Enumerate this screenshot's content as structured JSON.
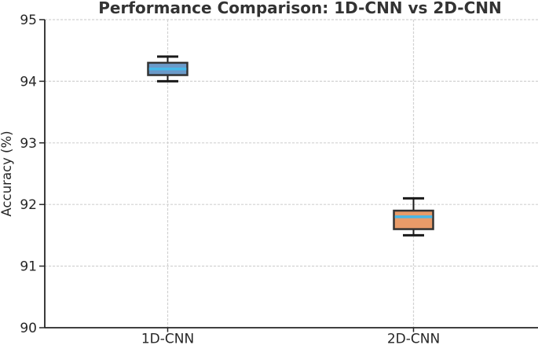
{
  "chart_data": {
    "type": "boxplot",
    "title": "Performance Comparison: 1D-CNN vs 2D-CNN",
    "xlabel": "",
    "ylabel": "Accuracy (%)",
    "categories": [
      "1D-CNN",
      "2D-CNN"
    ],
    "ylim": [
      90,
      95
    ],
    "yticks": [
      90,
      91,
      92,
      93,
      94,
      95
    ],
    "grid": "dashed light-gray horizontal lines at each y tick and vertical line at each category; top and right spines hidden",
    "legend": "none",
    "series": [
      {
        "name": "1D-CNN",
        "whisker_low": 94.0,
        "q1": 94.1,
        "median": 94.2,
        "q3": 94.3,
        "whisker_high": 94.4,
        "box_fill": "#6b9ac9"
      },
      {
        "name": "2D-CNN",
        "whisker_low": 91.5,
        "q1": 91.6,
        "median": 91.8,
        "q3": 91.9,
        "whisker_high": 92.1,
        "box_fill": "#e89b69"
      }
    ],
    "colors": {
      "median_line": "#45b8e9",
      "box_edge": "#333333",
      "whisker": "#1a1a1a",
      "grid_line": "#d2d2d2",
      "axis_line": "#262626",
      "title_color": "#333333",
      "tick_label_color": "#262626",
      "background": "#ffffff"
    }
  }
}
